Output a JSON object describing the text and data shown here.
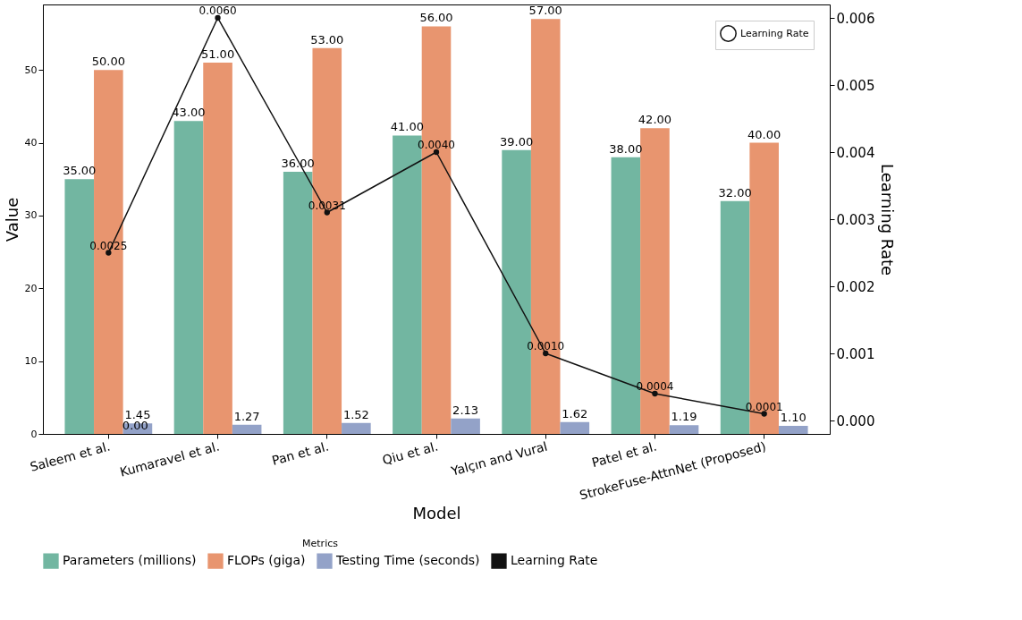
{
  "chart_data": {
    "type": "bar",
    "xlabel": "Model",
    "ylabel": "Value",
    "y2label": "Learning Rate",
    "legend_title": "Metrics",
    "legend": "bottom",
    "categories": [
      "Saleem et al.",
      "Kumaravel et al.",
      "Pan et al.",
      "Qiu et al.",
      "Yalçın and Vural",
      "Patel et al.",
      "StrokeFuse-AttnNet (Proposed)"
    ],
    "series": [
      {
        "name": "Parameters (millions)",
        "color": "#72b6a1",
        "values": [
          35,
          43,
          36,
          41,
          39,
          38,
          32
        ],
        "value_labels": [
          "35.00",
          "43.00",
          "36.00",
          "41.00",
          "39.00",
          "38.00",
          "32.00"
        ]
      },
      {
        "name": "FLOPs (giga)",
        "color": "#e8956f",
        "values": [
          50,
          51,
          53,
          56,
          57,
          42,
          40
        ],
        "value_labels": [
          "50.00",
          "51.00",
          "53.00",
          "56.00",
          "57.00",
          "42.00",
          "40.00"
        ]
      },
      {
        "name": "Testing Time (seconds)",
        "color": "#93a2c8",
        "values": [
          1.45,
          1.27,
          1.52,
          2.13,
          1.62,
          1.19,
          1.1
        ],
        "value_labels": [
          "1.45",
          "1.27",
          "1.52",
          "2.13",
          "1.62",
          "1.19",
          "1.10"
        ]
      },
      {
        "name": "Learning Rate",
        "type": "line",
        "axis": "y2",
        "color": "#111111",
        "marker": "circle",
        "line_style": "solid",
        "values": [
          0.0025,
          0.006,
          0.0031,
          0.004,
          0.001,
          0.0004,
          0.0001
        ],
        "value_labels": [
          "0.0025",
          "0.0060",
          "0.0031",
          "0.0040",
          "0.0010",
          "0.0004",
          "0.0001"
        ]
      }
    ],
    "annotations": [
      {
        "text": "0.00",
        "x": "Saleem et al.",
        "y": 0
      }
    ],
    "ylim": [
      0,
      59
    ],
    "yticks": [
      0,
      10,
      20,
      30,
      40,
      50
    ],
    "y2lim": [
      -0.0002,
      0.0062
    ],
    "y2ticks": [
      {
        "value": 0,
        "label": "0.000"
      },
      {
        "value": 0.001,
        "label": "0.001"
      },
      {
        "value": 0.002,
        "label": "0.002"
      },
      {
        "value": 0.003,
        "label": "0.003"
      },
      {
        "value": 0.004,
        "label": "0.004"
      },
      {
        "value": 0.005,
        "label": "0.005"
      },
      {
        "value": 0.006,
        "label": "0.006"
      }
    ],
    "grid": false
  }
}
